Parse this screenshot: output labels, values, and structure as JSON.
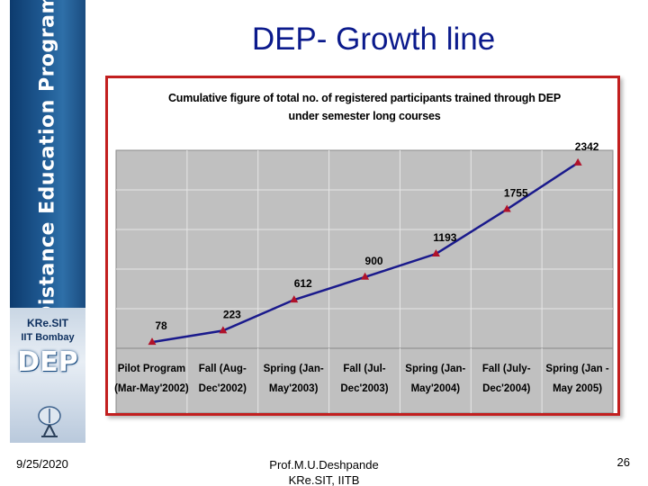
{
  "slide": {
    "title": "DEP- Growth line",
    "date": "9/25/2020",
    "presenter_line1": "Prof.M.U.Deshpande",
    "presenter_line2": "KRe.SIT, IITB",
    "page_number": "26"
  },
  "banner": {
    "title": "Distance Education Program",
    "org_line1": "KRe.SIT",
    "org_line2": "IIT Bombay",
    "logo_text": "DEP",
    "icon": "satellite-dish-icon"
  },
  "colors": {
    "title": "#0b1a8c",
    "frame": "#c21f1f",
    "plot_bg": "#c0c0c0",
    "line": "#1a1a8c",
    "marker": "#b0122a"
  },
  "chart_data": {
    "type": "line",
    "title": "Cumulative figure of total no. of registered participants trained through DEP under semester long courses",
    "categories": [
      [
        "Pilot Program",
        "(Mar-May'2002)"
      ],
      [
        "Fall (Aug-",
        "Dec'2002)"
      ],
      [
        "Spring (Jan-",
        "May'2003)"
      ],
      [
        "Fall (Jul-",
        "Dec'2003)"
      ],
      [
        "Spring (Jan-",
        "May'2004)"
      ],
      [
        "Fall (July-",
        "Dec'2004)"
      ],
      [
        "Spring (Jan -",
        "May 2005)"
      ]
    ],
    "values": [
      78,
      223,
      612,
      900,
      1193,
      1755,
      2342
    ],
    "ylim": [
      0,
      2500
    ],
    "grid": true,
    "xlabel": "",
    "ylabel": ""
  }
}
